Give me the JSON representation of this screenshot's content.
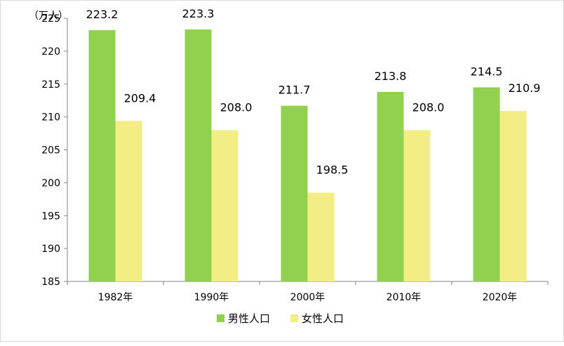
{
  "chart_data": {
    "type": "bar",
    "unit_label": "（万人）",
    "categories": [
      "1982年",
      "1990年",
      "2000年",
      "2010年",
      "2020年"
    ],
    "series": [
      {
        "name": "男性人口",
        "color": "#92d050",
        "values": [
          223.2,
          223.3,
          211.7,
          213.8,
          214.5
        ]
      },
      {
        "name": "女性人口",
        "color": "#f2ee85",
        "values": [
          209.4,
          208.0,
          198.5,
          208.0,
          210.9
        ]
      }
    ],
    "ylim": [
      185,
      225
    ],
    "yticks": [
      185,
      190,
      195,
      200,
      205,
      210,
      215,
      220,
      225
    ],
    "grid": false,
    "legend_position": "bottom"
  }
}
